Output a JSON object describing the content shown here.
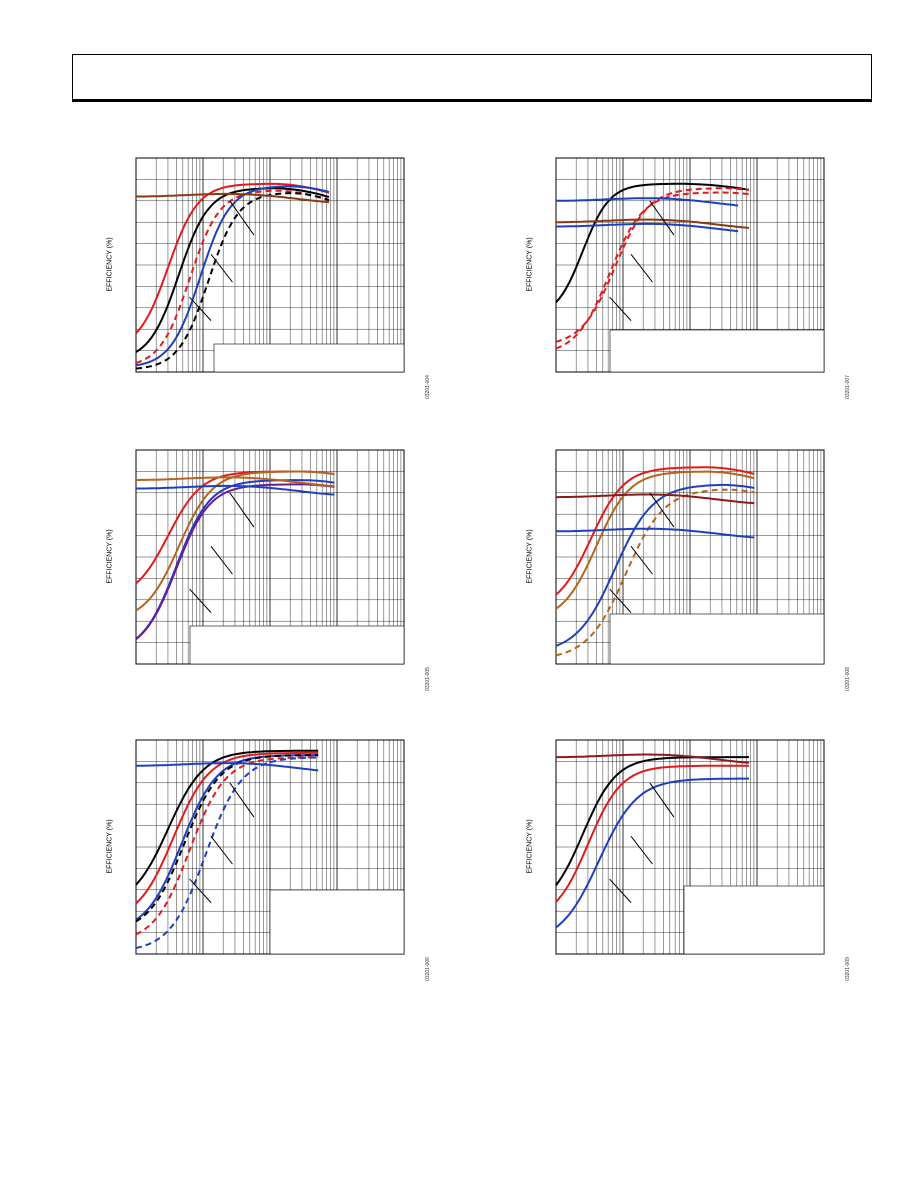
{
  "page": {
    "axis_label": "EFFICIENCY (%)"
  },
  "charts": [
    {
      "id": "fig-004",
      "fignum": "03201-004",
      "series_colors": [
        "#000000",
        "#e41a1c",
        "#1f3fbf",
        "#8b3a0f"
      ]
    },
    {
      "id": "fig-007",
      "fignum": "03201-007",
      "series_colors": [
        "#000000",
        "#e41a1c",
        "#1f3fbf",
        "#8b3a0f"
      ]
    },
    {
      "id": "fig-005",
      "fignum": "03201-005",
      "series_colors": [
        "#e41a1c",
        "#b5651d",
        "#1f3fbf",
        "#6a1b9a"
      ]
    },
    {
      "id": "fig-008",
      "fignum": "03201-008",
      "series_colors": [
        "#e41a1c",
        "#b5651d",
        "#1f3fbf",
        "#8b1a1a"
      ]
    },
    {
      "id": "fig-006",
      "fignum": "03201-006",
      "series_colors": [
        "#000000",
        "#e41a1c",
        "#1f3fbf"
      ]
    },
    {
      "id": "fig-009",
      "fignum": "03201-009",
      "series_colors": [
        "#000000",
        "#e41a1c",
        "#1f3fbf",
        "#8b1a1a"
      ]
    }
  ]
}
